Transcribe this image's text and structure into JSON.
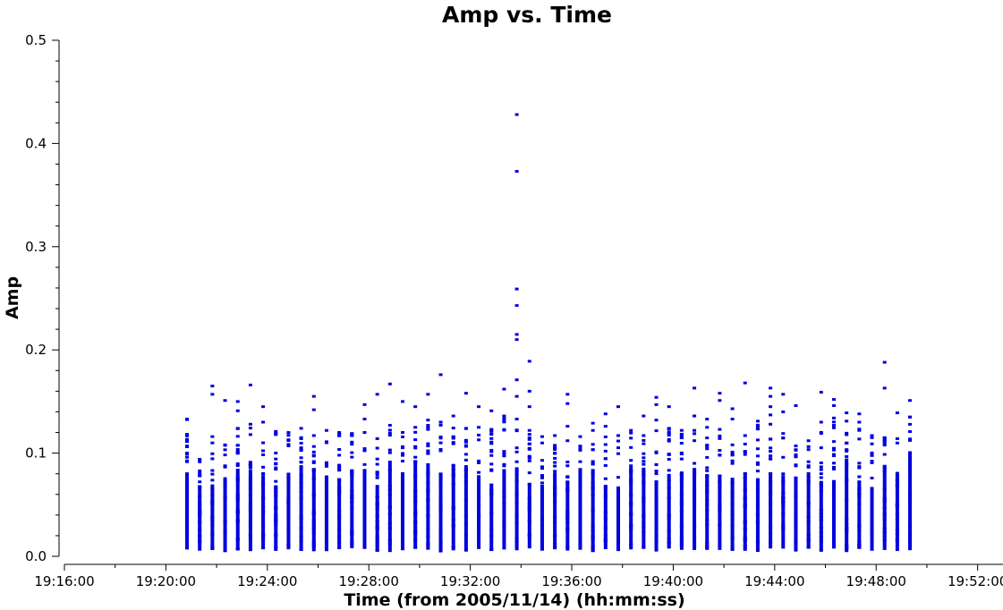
{
  "chart_data": {
    "type": "scatter",
    "title": "Amp vs. Time",
    "xlabel": "Time (from 2005/11/14) (hh:mm:ss)",
    "ylabel": "Amp",
    "xlim": [
      "19:16:00",
      "19:53:00"
    ],
    "ylim": [
      0,
      0.5
    ],
    "x_ticks": [
      "19:16:00",
      "19:20:00",
      "19:24:00",
      "19:28:00",
      "19:32:00",
      "19:36:00",
      "19:40:00",
      "19:44:00",
      "19:48:00",
      "19:52:00"
    ],
    "y_ticks": [
      "0.0",
      "0.1",
      "0.2",
      "0.3",
      "0.4",
      "0.5"
    ],
    "marker_color": "#0000dd",
    "series": [
      {
        "columns": [
          {
            "time": "19:20:50",
            "max": 0.133,
            "outliers": []
          },
          {
            "time": "19:21:20",
            "max": 0.094,
            "outliers": []
          },
          {
            "time": "19:21:50",
            "max": 0.116,
            "outliers": [
              0.165,
              0.157
            ]
          },
          {
            "time": "19:22:20",
            "max": 0.108,
            "outliers": [
              0.151
            ]
          },
          {
            "time": "19:22:50",
            "max": 0.124,
            "outliers": [
              0.15,
              0.141
            ]
          },
          {
            "time": "19:23:20",
            "max": 0.128,
            "outliers": [
              0.166
            ]
          },
          {
            "time": "19:23:50",
            "max": 0.11,
            "outliers": [
              0.145,
              0.13
            ]
          },
          {
            "time": "19:24:20",
            "max": 0.121,
            "outliers": []
          },
          {
            "time": "19:24:50",
            "max": 0.12,
            "outliers": []
          },
          {
            "time": "19:25:20",
            "max": 0.115,
            "outliers": [
              0.124
            ]
          },
          {
            "time": "19:25:50",
            "max": 0.117,
            "outliers": [
              0.155,
              0.142
            ]
          },
          {
            "time": "19:26:20",
            "max": 0.111,
            "outliers": [
              0.122
            ]
          },
          {
            "time": "19:26:50",
            "max": 0.12,
            "outliers": []
          },
          {
            "time": "19:27:20",
            "max": 0.119,
            "outliers": []
          },
          {
            "time": "19:27:50",
            "max": 0.12,
            "outliers": [
              0.147,
              0.133
            ]
          },
          {
            "time": "19:28:20",
            "max": 0.114,
            "outliers": [
              0.157
            ]
          },
          {
            "time": "19:28:50",
            "max": 0.127,
            "outliers": [
              0.167
            ]
          },
          {
            "time": "19:29:20",
            "max": 0.12,
            "outliers": [
              0.15
            ]
          },
          {
            "time": "19:29:50",
            "max": 0.125,
            "outliers": [
              0.145
            ]
          },
          {
            "time": "19:30:20",
            "max": 0.132,
            "outliers": [
              0.157
            ]
          },
          {
            "time": "19:30:50",
            "max": 0.13,
            "outliers": [
              0.176
            ]
          },
          {
            "time": "19:31:20",
            "max": 0.136,
            "outliers": []
          },
          {
            "time": "19:31:50",
            "max": 0.124,
            "outliers": [
              0.158
            ]
          },
          {
            "time": "19:32:20",
            "max": 0.125,
            "outliers": [
              0.145
            ]
          },
          {
            "time": "19:32:50",
            "max": 0.123,
            "outliers": [
              0.141
            ]
          },
          {
            "time": "19:33:20",
            "max": 0.136,
            "outliers": [
              0.162
            ]
          },
          {
            "time": "19:33:50",
            "max": 0.133,
            "outliers": [
              0.428,
              0.373,
              0.259,
              0.243,
              0.215,
              0.21,
              0.171,
              0.155
            ]
          },
          {
            "time": "19:34:20",
            "max": 0.122,
            "outliers": [
              0.189,
              0.16,
              0.145
            ]
          },
          {
            "time": "19:34:50",
            "max": 0.116,
            "outliers": []
          },
          {
            "time": "19:35:20",
            "max": 0.117,
            "outliers": []
          },
          {
            "time": "19:35:50",
            "max": 0.126,
            "outliers": [
              0.157,
              0.148
            ]
          },
          {
            "time": "19:36:20",
            "max": 0.116,
            "outliers": []
          },
          {
            "time": "19:36:50",
            "max": 0.122,
            "outliers": [
              0.129
            ]
          },
          {
            "time": "19:37:20",
            "max": 0.126,
            "outliers": [
              0.138
            ]
          },
          {
            "time": "19:37:50",
            "max": 0.117,
            "outliers": [
              0.145
            ]
          },
          {
            "time": "19:38:20",
            "max": 0.122,
            "outliers": []
          },
          {
            "time": "19:38:50",
            "max": 0.117,
            "outliers": [
              0.136
            ]
          },
          {
            "time": "19:39:20",
            "max": 0.132,
            "outliers": [
              0.154,
              0.147
            ]
          },
          {
            "time": "19:39:50",
            "max": 0.124,
            "outliers": [
              0.145
            ]
          },
          {
            "time": "19:40:20",
            "max": 0.122,
            "outliers": []
          },
          {
            "time": "19:40:50",
            "max": 0.122,
            "outliers": [
              0.163,
              0.136
            ]
          },
          {
            "time": "19:41:20",
            "max": 0.125,
            "outliers": [
              0.133
            ]
          },
          {
            "time": "19:41:50",
            "max": 0.123,
            "outliers": [
              0.158,
              0.151
            ]
          },
          {
            "time": "19:42:20",
            "max": 0.108,
            "outliers": [
              0.143,
              0.133
            ]
          },
          {
            "time": "19:42:50",
            "max": 0.117,
            "outliers": [
              0.168
            ]
          },
          {
            "time": "19:43:20",
            "max": 0.131,
            "outliers": []
          },
          {
            "time": "19:43:50",
            "max": 0.128,
            "outliers": [
              0.163,
              0.155,
              0.145,
              0.137
            ]
          },
          {
            "time": "19:44:20",
            "max": 0.119,
            "outliers": [
              0.157,
              0.14
            ]
          },
          {
            "time": "19:44:50",
            "max": 0.107,
            "outliers": [
              0.146
            ]
          },
          {
            "time": "19:45:20",
            "max": 0.112,
            "outliers": []
          },
          {
            "time": "19:45:50",
            "max": 0.13,
            "outliers": [
              0.159
            ]
          },
          {
            "time": "19:46:20",
            "max": 0.134,
            "outliers": [
              0.152,
              0.146
            ]
          },
          {
            "time": "19:46:50",
            "max": 0.131,
            "outliers": [
              0.139
            ]
          },
          {
            "time": "19:47:20",
            "max": 0.13,
            "outliers": [
              0.138
            ]
          },
          {
            "time": "19:47:50",
            "max": 0.117,
            "outliers": []
          },
          {
            "time": "19:48:20",
            "max": 0.115,
            "outliers": [
              0.188,
              0.163
            ]
          },
          {
            "time": "19:48:50",
            "max": 0.114,
            "outliers": [
              0.139
            ]
          },
          {
            "time": "19:49:20",
            "max": 0.135,
            "outliers": [
              0.151
            ]
          }
        ]
      }
    ]
  }
}
